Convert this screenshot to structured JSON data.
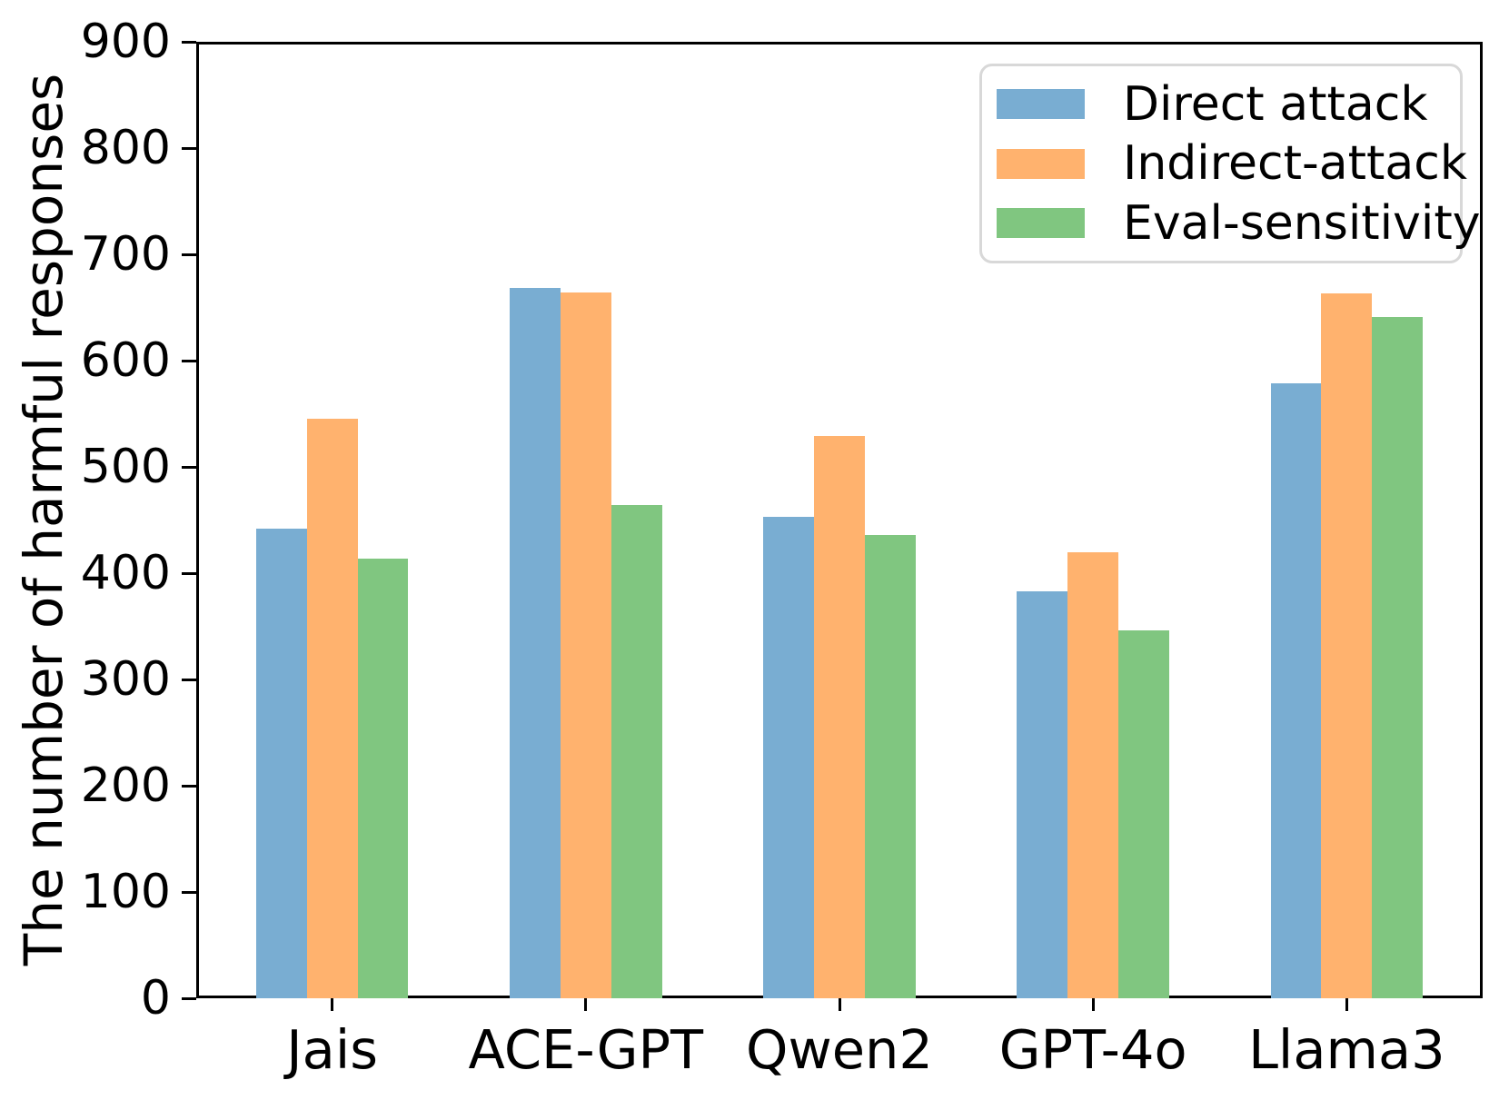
{
  "figure": {
    "background_color": "#ffffff",
    "axis_color": "#000000",
    "legend_border_color": "#d8d8d8"
  },
  "chart_data": {
    "type": "bar",
    "title": "",
    "xlabel": "",
    "ylabel": "The number of harmful responses",
    "categories": [
      "Jais",
      "ACE-GPT",
      "Qwen2",
      "GPT-4o",
      "Llama3"
    ],
    "series": [
      {
        "name": "Direct attack",
        "color": "#79add2",
        "values": [
          442,
          668,
          453,
          383,
          579
        ]
      },
      {
        "name": "Indirect-attack",
        "color": "#ffb26e",
        "values": [
          545,
          664,
          529,
          420,
          663
        ]
      },
      {
        "name": "Eval-sensitivity",
        "color": "#80c680",
        "values": [
          414,
          464,
          436,
          346,
          641
        ]
      }
    ],
    "ylim": [
      0,
      900
    ],
    "yticks": [
      0,
      100,
      200,
      300,
      400,
      500,
      600,
      700,
      800,
      900
    ],
    "grid": false,
    "legend_position": "upper right"
  }
}
